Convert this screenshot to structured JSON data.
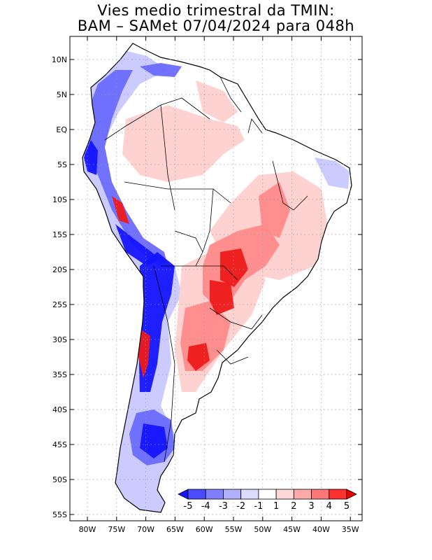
{
  "title": {
    "line1": "Vies medio trimestral da TMIN:",
    "line2": "BAM – SAMet 07/04/2024  para 048h"
  },
  "lon_labels": [
    "80W",
    "75W",
    "70W",
    "65W",
    "60W",
    "55W",
    "50W",
    "45W",
    "40W",
    "35W"
  ],
  "lat_labels": [
    "10N",
    "5N",
    "EQ",
    "5S",
    "10S",
    "15S",
    "20S",
    "25S",
    "30S",
    "35S",
    "40S",
    "45S",
    "50S",
    "55S"
  ],
  "colorbar": {
    "labels": [
      "-5",
      "-4",
      "-3",
      "-2",
      "-1",
      "1",
      "2",
      "3",
      "4",
      "5"
    ],
    "colors": [
      "#1414ff",
      "#4a4aff",
      "#7f7fff",
      "#b0b0ff",
      "#dcdcff",
      "#ffffff",
      "#ffd8d8",
      "#ffaaaa",
      "#ff7777",
      "#ff3030",
      "#ee0000"
    ]
  },
  "map_colors": {
    "frame": "#000000",
    "grid": "#9a9a9a",
    "outline": "#000000",
    "blue_strong": "#1414ff",
    "blue_mid": "#6a6aff",
    "blue_light": "#c8c8ff",
    "red_strong": "#ee1a1a",
    "red_mid": "#ff8a8a",
    "red_light": "#ffd0d0",
    "neutral": "#ffffff"
  }
}
